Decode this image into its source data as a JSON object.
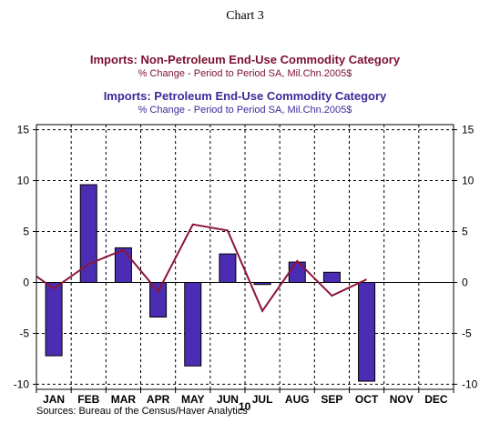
{
  "chart_number": "Chart 3",
  "chart_data": {
    "type": "bar",
    "title_nonpetro": "Imports: Non-Petroleum End-Use Commodity Category",
    "subtitle_nonpetro": "% Change - Period to Period     SA, Mil.Chn.2005$",
    "title_petro": "Imports: Petroleum End-Use Commodity Category",
    "subtitle_petro": "% Change - Period to Period     SA, Mil.Chn.2005$",
    "categories": [
      "JAN",
      "FEB",
      "MAR",
      "APR",
      "MAY",
      "JUN",
      "JUL",
      "AUG",
      "SEP",
      "OCT",
      "NOV",
      "DEC"
    ],
    "year_label": "10",
    "ylim": [
      -10.5,
      15.5
    ],
    "yticks": [
      -10,
      -5,
      0,
      5,
      10,
      15
    ],
    "ytick_labels": [
      "-10",
      "-5",
      "0",
      "5",
      "10",
      "15"
    ],
    "grid": true,
    "series": [
      {
        "type": "bar",
        "values": [
          -7.2,
          9.6,
          3.4,
          -3.4,
          -8.2,
          2.8,
          -0.2,
          2.0,
          1.0,
          -9.7,
          null,
          null
        ],
        "color": "#4b2db3"
      },
      {
        "type": "line",
        "x_start": 0.0,
        "x_start_value": 0.6,
        "values": [
          -0.6,
          1.8,
          3.2,
          -0.9,
          5.7,
          5.1,
          -2.8,
          2.1,
          -1.3,
          0.3,
          null,
          null
        ],
        "color": "#8b1538"
      }
    ],
    "source": "Sources:  Bureau of the Census/Haver Analytics"
  }
}
